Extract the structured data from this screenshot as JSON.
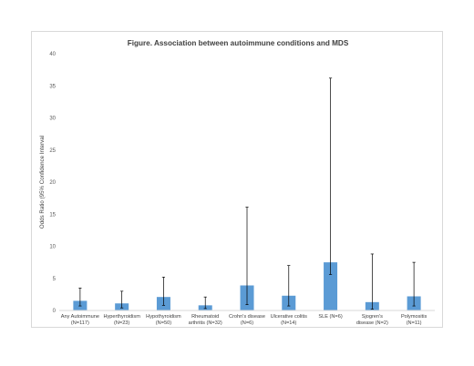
{
  "chart_data": {
    "type": "bar",
    "title": "Figure. Association between autoimmune conditions and MDS",
    "xlabel": "",
    "ylabel": "Odds Ratio (95% Confidence Interval",
    "ylim": [
      0,
      40
    ],
    "yticks": [
      0,
      5,
      10,
      15,
      20,
      25,
      30,
      35,
      40
    ],
    "grid": false,
    "legend": "none",
    "bar_color": "#5b9bd5",
    "errorbar_color": "#000000",
    "categories": [
      [
        "Any Autoimmune",
        "(N=117)"
      ],
      [
        "Hyperthyroidism",
        "(N=23)"
      ],
      [
        "Hypothyroidism",
        "(N=50)"
      ],
      [
        "Rheumatoid",
        "arthritis (N=32)"
      ],
      [
        "Crohn's disease",
        "(N=6)"
      ],
      [
        "Ulcerative colitis",
        "(N=14)"
      ],
      [
        "SLE (N=6)"
      ],
      [
        "Sjogren's",
        "disease (N=2)"
      ],
      [
        "Polymositis",
        "(N=11)"
      ]
    ],
    "values": [
      1.5,
      1.1,
      2.1,
      0.8,
      3.9,
      2.3,
      7.5,
      1.3,
      2.2
    ],
    "ci_lower": [
      0.7,
      0.4,
      0.8,
      0.3,
      0.9,
      0.7,
      5.6,
      0.2,
      0.7
    ],
    "ci_upper": [
      3.5,
      3.0,
      5.2,
      2.1,
      16.1,
      7.0,
      36.2,
      8.8,
      7.5
    ]
  }
}
